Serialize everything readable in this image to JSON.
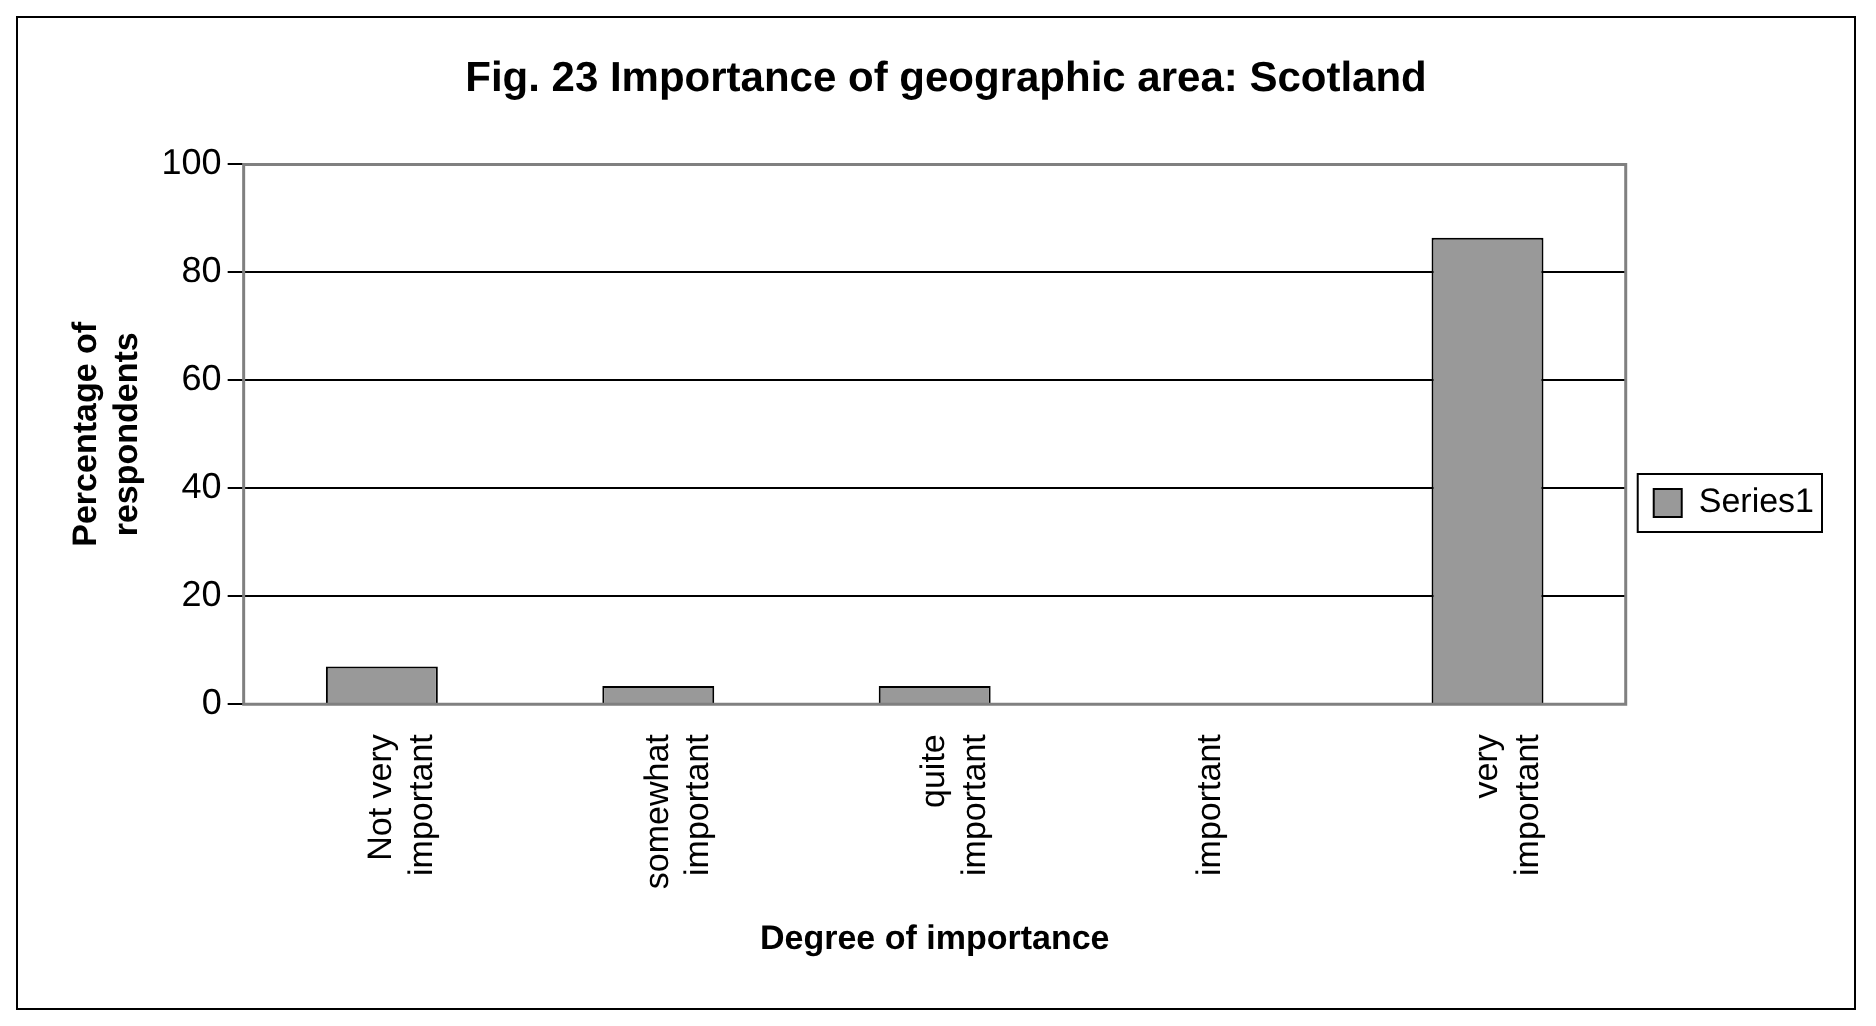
{
  "chart_data": {
    "type": "bar",
    "title": "Fig. 23 Importance of geographic area: Scotland",
    "xlabel": "Degree of importance",
    "ylabel": "Percentage of respondents",
    "categories": [
      "Not very important",
      "somewhat important",
      "quite important",
      "important",
      "very important"
    ],
    "series": [
      {
        "name": "Series1",
        "color": "#999999",
        "values": [
          7,
          3.4,
          3.4,
          0,
          86.4
        ]
      }
    ],
    "ylim": [
      0,
      100
    ],
    "yticks": [
      0,
      20,
      40,
      60,
      80,
      100
    ],
    "grid": "y",
    "legend": "right"
  }
}
